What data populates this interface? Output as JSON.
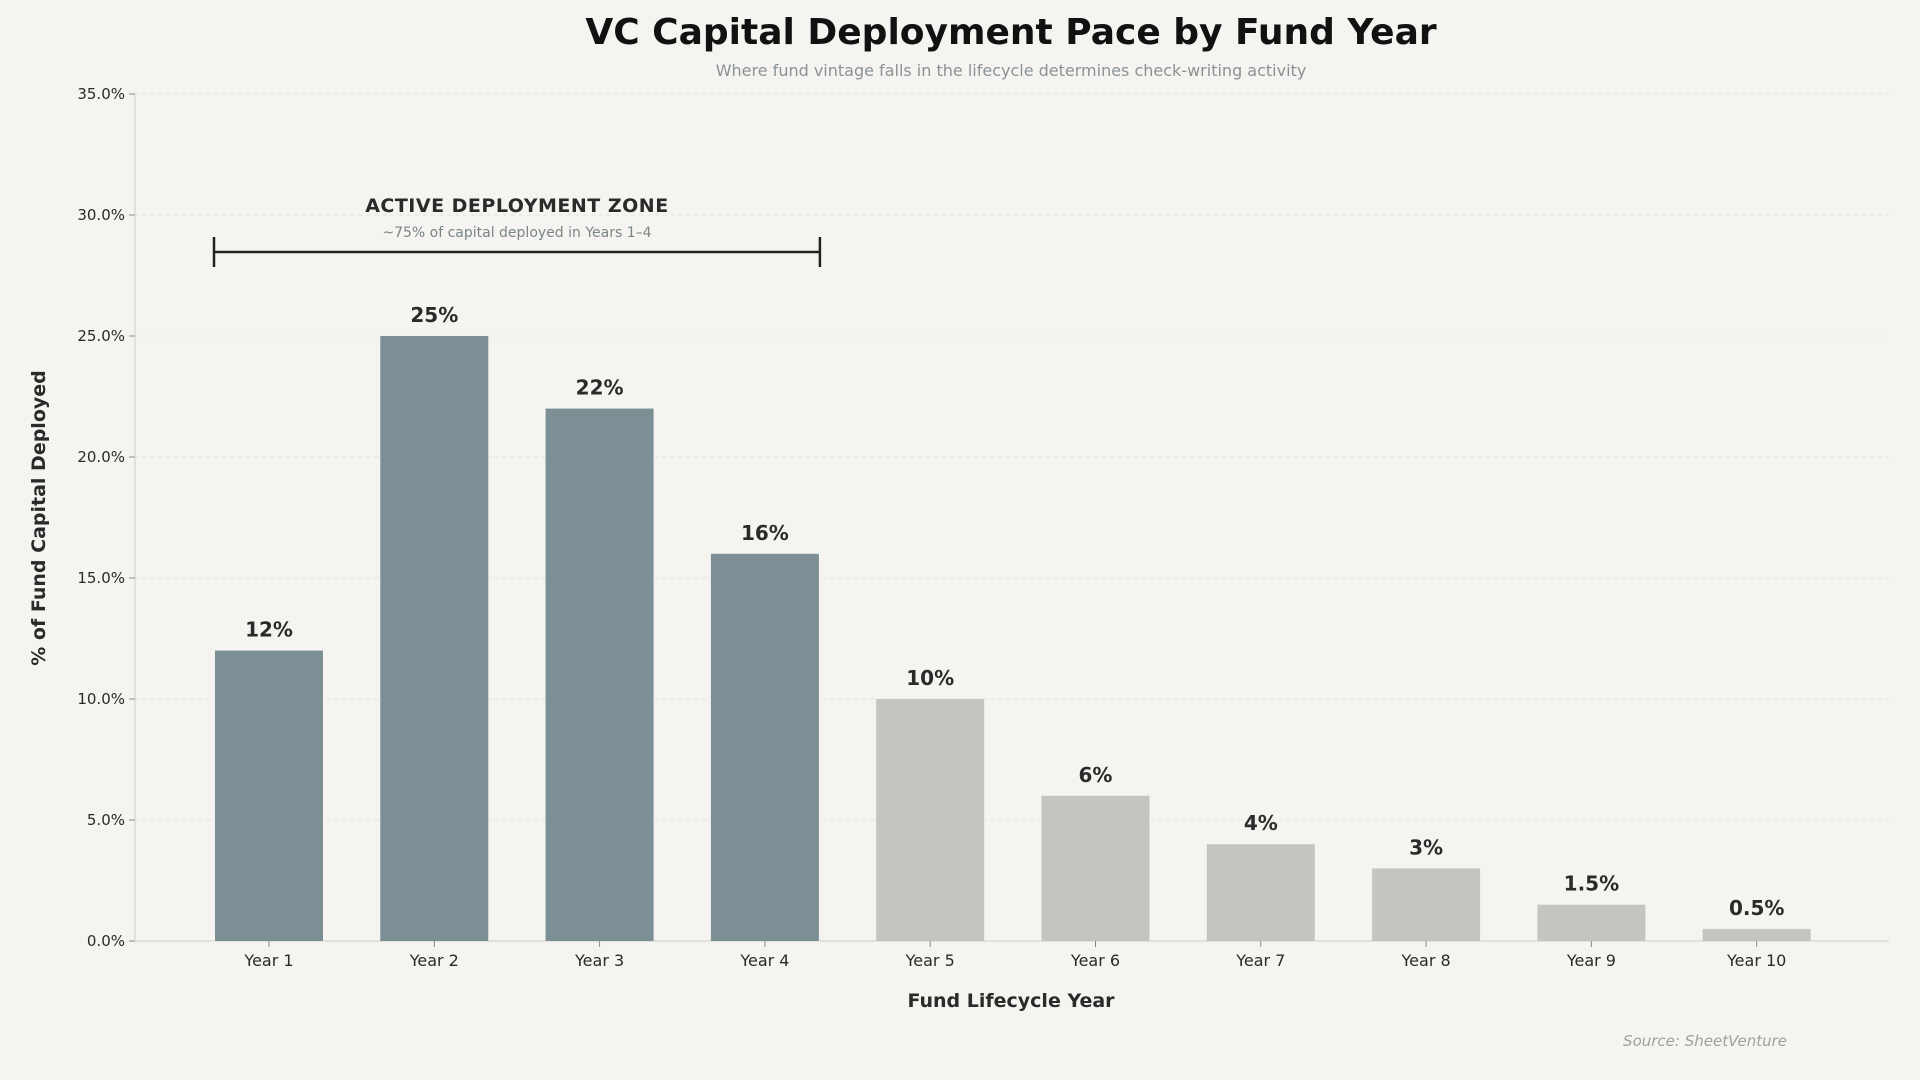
{
  "chart_data": {
    "type": "bar",
    "title": "VC Capital Deployment Pace by Fund Year",
    "subtitle": "Where fund vintage falls in the lifecycle determines check-writing activity",
    "xlabel": "Fund Lifecycle Year",
    "ylabel": "% of Fund Capital Deployed",
    "categories": [
      "Year 1",
      "Year 2",
      "Year 3",
      "Year 4",
      "Year 5",
      "Year 6",
      "Year 7",
      "Year 8",
      "Year 9",
      "Year 10"
    ],
    "values": [
      12,
      25,
      22,
      16,
      10,
      6,
      4,
      3,
      1.5,
      0.5
    ],
    "data_labels": [
      "12%",
      "25%",
      "22%",
      "16%",
      "10%",
      "6%",
      "4%",
      "3%",
      "1.5%",
      "0.5%"
    ],
    "ylim": [
      0,
      35
    ],
    "yticks": [
      "0.0%",
      "5.0%",
      "10.0%",
      "15.0%",
      "20.0%",
      "25.0%",
      "30.0%",
      "35.0%"
    ],
    "grid": true,
    "colors": {
      "active": "#7b8f95",
      "later": "#c6c4bf",
      "text": "#2a2a2a",
      "annotation": "#7a8589"
    },
    "annotation": {
      "title": "ACTIVE DEPLOYMENT ZONE",
      "subtitle": "~75% of capital deployed in Years 1–4",
      "span": [
        "Year 1",
        "Year 4"
      ]
    },
    "source": "Source: SheetVenture"
  }
}
